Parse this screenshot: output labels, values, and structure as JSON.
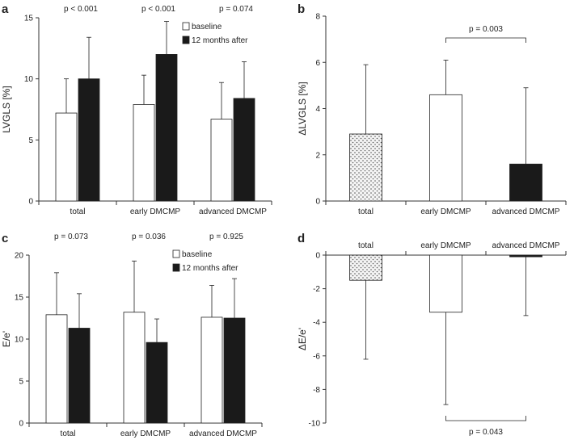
{
  "colors": {
    "baseline": "#ffffff",
    "after": "#1a1a1a",
    "total_fill": "#e8e8e8",
    "axis": "#333333",
    "stroke": "#222222"
  },
  "panels": {
    "a": {
      "label": "a"
    },
    "b": {
      "label": "b"
    },
    "c": {
      "label": "c"
    },
    "d": {
      "label": "d"
    }
  },
  "chart_data": [
    {
      "id": "a",
      "type": "bar",
      "ylabel": "LVGLS [%]",
      "ylim": [
        0,
        15
      ],
      "yticks": [
        0,
        5,
        10,
        15
      ],
      "categories": [
        "total",
        "early DMCMP",
        "advanced DMCMP"
      ],
      "series": [
        {
          "name": "baseline",
          "values": [
            7.2,
            7.9,
            6.7
          ],
          "errors_upper": [
            10.0,
            10.3,
            9.7
          ]
        },
        {
          "name": "12 months after",
          "values": [
            10.0,
            12.0,
            8.4
          ],
          "errors_upper": [
            13.4,
            14.7,
            11.4
          ]
        }
      ],
      "pvalues": [
        "p < 0.001",
        "p < 0.001",
        "p = 0.074"
      ],
      "legend": [
        "baseline",
        "12 months after"
      ],
      "legend_position": "top-right"
    },
    {
      "id": "b",
      "type": "bar",
      "ylabel": "ΔLVGLS [%]",
      "ylim": [
        0,
        8
      ],
      "yticks": [
        0,
        2,
        4,
        6,
        8
      ],
      "categories": [
        "total",
        "early DMCMP",
        "advanced DMCMP"
      ],
      "values": [
        2.9,
        4.6,
        1.6
      ],
      "errors_upper": [
        5.9,
        6.1,
        4.9
      ],
      "fills": [
        "dotted",
        "white",
        "black"
      ],
      "bracket": {
        "from": "early DMCMP",
        "to": "advanced DMCMP",
        "label": "p = 0.003"
      }
    },
    {
      "id": "c",
      "type": "bar",
      "ylabel": "E/e'",
      "ylim": [
        0,
        20
      ],
      "yticks": [
        0,
        5,
        10,
        15,
        20
      ],
      "categories": [
        "total",
        "early DMCMP",
        "advanced DMCMP"
      ],
      "series": [
        {
          "name": "baseline",
          "values": [
            12.9,
            13.2,
            12.6
          ],
          "errors_upper": [
            17.9,
            19.3,
            16.4
          ]
        },
        {
          "name": "12 months after",
          "values": [
            11.3,
            9.6,
            12.5
          ],
          "errors_upper": [
            15.4,
            12.4,
            17.2
          ]
        }
      ],
      "pvalues": [
        "p = 0.073",
        "p = 0.036",
        "p = 0.925"
      ],
      "legend": [
        "baseline",
        "12 months after"
      ],
      "legend_position": "top-right"
    },
    {
      "id": "d",
      "type": "bar",
      "ylabel": "ΔE/e'",
      "ylim": [
        -10,
        0
      ],
      "yticks": [
        0,
        -2,
        -4,
        -6,
        -8,
        -10
      ],
      "categories": [
        "total",
        "early DMCMP",
        "advanced DMCMP"
      ],
      "values": [
        -1.5,
        -3.4,
        -0.1
      ],
      "errors_lower": [
        -6.2,
        -8.9,
        -3.6
      ],
      "fills": [
        "dotted",
        "white",
        "black"
      ],
      "bracket": {
        "from": "early DMCMP",
        "to": "advanced DMCMP",
        "label": "p = 0.043"
      }
    }
  ]
}
